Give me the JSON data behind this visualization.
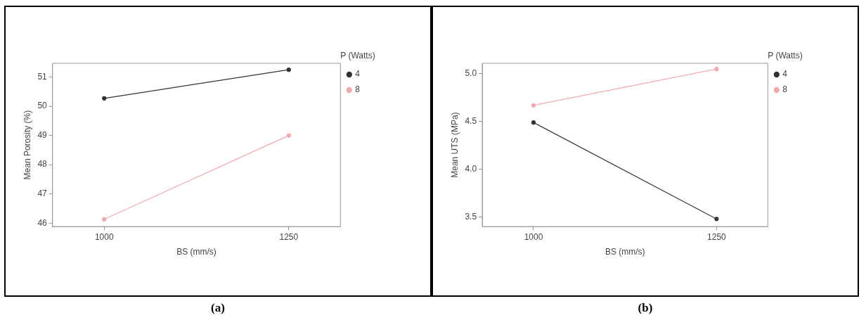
{
  "chart_data": [
    {
      "type": "line",
      "ylabel": "Mean Porosity (%)",
      "xlabel": "BS (mm/s)",
      "legend_title": "P (Watts)",
      "categories": [
        "1000",
        "1250"
      ],
      "ylim": [
        45.88,
        51.47
      ],
      "yticks": [
        46,
        47,
        48,
        49,
        50,
        51
      ],
      "series": [
        {
          "name": "4",
          "color": "#333333",
          "values": [
            50.27,
            51.25
          ]
        },
        {
          "name": "8",
          "color": "#f0a8b0",
          "values": [
            46.13,
            49.0
          ]
        }
      ],
      "marker": "circle",
      "legend": "top right",
      "grid": false,
      "annotations": [
        "(a)"
      ]
    },
    {
      "type": "line",
      "ylabel": "Mean UTS (MPa)",
      "xlabel": "BS (mm/s)",
      "legend_title": "P (Watts)",
      "categories": [
        "1000",
        "1250"
      ],
      "ylim": [
        3.4,
        5.11
      ],
      "yticks": [
        {
          "value": 3.5,
          "label": "3.5"
        },
        {
          "value": 4,
          "label": "4.0"
        },
        {
          "value": 4.5,
          "label": "4.5"
        },
        {
          "value": 5,
          "label": "5.0"
        }
      ],
      "series": [
        {
          "name": "4",
          "color": "#333333",
          "values": [
            4.49,
            3.48
          ]
        },
        {
          "name": "8",
          "color": "#f0a8b0",
          "values": [
            4.67,
            5.05
          ]
        }
      ],
      "marker": "circle",
      "legend": "top right",
      "grid": false,
      "annotations": [
        "(b)"
      ]
    }
  ]
}
